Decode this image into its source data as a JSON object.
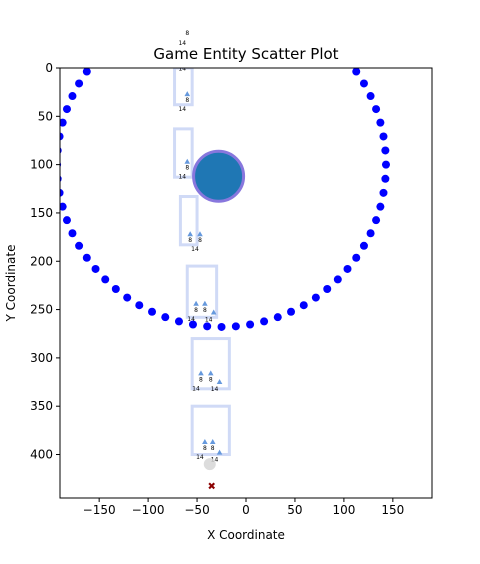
{
  "chart_data": {
    "type": "scatter",
    "title": "Game Entity Scatter Plot",
    "xlabel": "X Coordinate",
    "ylabel": "Y Coordinate",
    "xlim": [
      -190,
      190
    ],
    "ylim": [
      445,
      0
    ],
    "y_inverted": true,
    "grid": false,
    "legend": "none",
    "xticks": [
      -150,
      -100,
      -50,
      0,
      50,
      100,
      150
    ],
    "yticks": [
      0,
      50,
      100,
      150,
      200,
      250,
      300,
      350,
      400
    ],
    "colors": {
      "ring_points": "#0000ff",
      "big_circle_fill": "#1f77b4",
      "big_circle_edge": "#8877dd",
      "box_edge": "#aabbee",
      "triangle": "#6699dd",
      "target_marker": "#8b0000",
      "grey_point": "#d3d3d3"
    },
    "ring": {
      "center": [
        -25,
        100
      ],
      "radius": 168,
      "count": 72
    },
    "big_circle": {
      "x": -28,
      "y": 112,
      "label": ""
    },
    "boxes": [
      {
        "x_range": [
          -73,
          -55
        ],
        "y_range": [
          0,
          38
        ]
      },
      {
        "x_range": [
          -73,
          -55
        ],
        "y_range": [
          63,
          113
        ]
      },
      {
        "x_range": [
          -67,
          -50
        ],
        "y_range": [
          133,
          183
        ]
      },
      {
        "x_range": [
          -60,
          -30
        ],
        "y_range": [
          205,
          258
        ]
      },
      {
        "x_range": [
          -55,
          -17
        ],
        "y_range": [
          280,
          332
        ]
      },
      {
        "x_range": [
          -55,
          -17
        ],
        "y_range": [
          350,
          400
        ]
      }
    ],
    "labeled_points": [
      {
        "x": -60,
        "y": -15,
        "labels": [
          "8",
          "14"
        ]
      },
      {
        "x": -60,
        "y": 27,
        "labels": [
          "8",
          "14"
        ]
      },
      {
        "x": -60,
        "y": 97,
        "labels": [
          "8",
          "14"
        ]
      },
      {
        "x": -57,
        "y": 172,
        "labels": [
          "8"
        ]
      },
      {
        "x": -47,
        "y": 172,
        "labels": [
          "8",
          "14"
        ]
      },
      {
        "x": -51,
        "y": 244,
        "labels": [
          "8",
          "14"
        ]
      },
      {
        "x": -42,
        "y": 244,
        "labels": [
          "8"
        ]
      },
      {
        "x": -33,
        "y": 253,
        "labels": [
          "14"
        ]
      },
      {
        "x": -46,
        "y": 316,
        "labels": [
          "8",
          "14"
        ]
      },
      {
        "x": -36,
        "y": 316,
        "labels": [
          "8"
        ]
      },
      {
        "x": -27,
        "y": 325,
        "labels": [
          "14"
        ]
      },
      {
        "x": -42,
        "y": 387,
        "labels": [
          "8",
          "14"
        ]
      },
      {
        "x": -34,
        "y": 387,
        "labels": [
          "8"
        ]
      },
      {
        "x": -27,
        "y": 398,
        "labels": [
          "14"
        ]
      }
    ],
    "grey_point": {
      "x": -37,
      "y": 410
    },
    "target_marker": {
      "x": -35,
      "y": 432,
      "symbol": "✖"
    }
  }
}
